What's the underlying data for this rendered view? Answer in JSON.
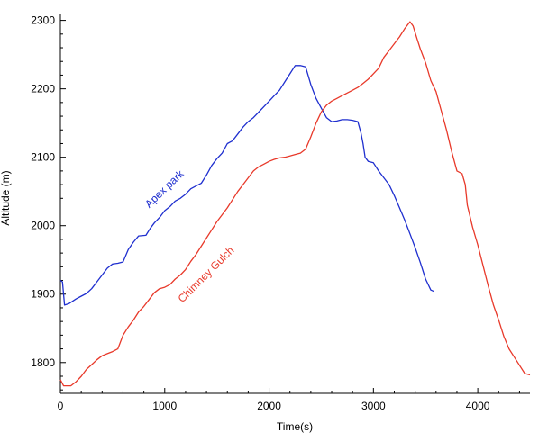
{
  "chart_data": {
    "type": "line",
    "title": "",
    "xlabel": "Time(s)",
    "ylabel": "Altitude (m)",
    "xlim": [
      0,
      4500
    ],
    "ylim": [
      1755,
      2310
    ],
    "xticks": [
      0,
      1000,
      2000,
      3000,
      4000
    ],
    "yticks": [
      1800,
      1900,
      2000,
      2100,
      2200,
      2300
    ],
    "grid": false,
    "legend": "none",
    "series": [
      {
        "name": "Apex park",
        "color": "#1f2fcf",
        "points": [
          [
            0,
            1920
          ],
          [
            20,
            1918
          ],
          [
            40,
            1884
          ],
          [
            80,
            1886
          ],
          [
            150,
            1893
          ],
          [
            200,
            1897
          ],
          [
            250,
            1901
          ],
          [
            300,
            1908
          ],
          [
            350,
            1918
          ],
          [
            400,
            1928
          ],
          [
            450,
            1938
          ],
          [
            500,
            1944
          ],
          [
            550,
            1945
          ],
          [
            600,
            1947
          ],
          [
            650,
            1965
          ],
          [
            700,
            1976
          ],
          [
            750,
            1985
          ],
          [
            820,
            1986
          ],
          [
            860,
            1996
          ],
          [
            900,
            2004
          ],
          [
            950,
            2012
          ],
          [
            1000,
            2022
          ],
          [
            1050,
            2028
          ],
          [
            1100,
            2036
          ],
          [
            1150,
            2040
          ],
          [
            1200,
            2046
          ],
          [
            1250,
            2054
          ],
          [
            1300,
            2058
          ],
          [
            1350,
            2062
          ],
          [
            1400,
            2074
          ],
          [
            1450,
            2088
          ],
          [
            1500,
            2098
          ],
          [
            1550,
            2106
          ],
          [
            1600,
            2120
          ],
          [
            1650,
            2124
          ],
          [
            1700,
            2134
          ],
          [
            1750,
            2144
          ],
          [
            1800,
            2152
          ],
          [
            1850,
            2158
          ],
          [
            1900,
            2166
          ],
          [
            1950,
            2174
          ],
          [
            2000,
            2182
          ],
          [
            2050,
            2190
          ],
          [
            2100,
            2198
          ],
          [
            2150,
            2210
          ],
          [
            2200,
            2222
          ],
          [
            2250,
            2234
          ],
          [
            2300,
            2234
          ],
          [
            2350,
            2232
          ],
          [
            2400,
            2206
          ],
          [
            2450,
            2186
          ],
          [
            2500,
            2172
          ],
          [
            2550,
            2158
          ],
          [
            2600,
            2152
          ],
          [
            2650,
            2153
          ],
          [
            2700,
            2155
          ],
          [
            2750,
            2155
          ],
          [
            2800,
            2154
          ],
          [
            2850,
            2152
          ],
          [
            2880,
            2136
          ],
          [
            2900,
            2120
          ],
          [
            2920,
            2100
          ],
          [
            2950,
            2094
          ],
          [
            3000,
            2092
          ],
          [
            3050,
            2080
          ],
          [
            3100,
            2070
          ],
          [
            3150,
            2060
          ],
          [
            3200,
            2044
          ],
          [
            3250,
            2026
          ],
          [
            3300,
            2008
          ],
          [
            3350,
            1988
          ],
          [
            3400,
            1968
          ],
          [
            3450,
            1946
          ],
          [
            3500,
            1922
          ],
          [
            3550,
            1906
          ],
          [
            3580,
            1904
          ]
        ]
      },
      {
        "name": "Chimney Gulch",
        "color": "#e8392a",
        "points": [
          [
            0,
            1775
          ],
          [
            30,
            1766
          ],
          [
            100,
            1766
          ],
          [
            150,
            1772
          ],
          [
            200,
            1780
          ],
          [
            250,
            1790
          ],
          [
            300,
            1797
          ],
          [
            350,
            1804
          ],
          [
            400,
            1810
          ],
          [
            450,
            1813
          ],
          [
            500,
            1816
          ],
          [
            550,
            1820
          ],
          [
            600,
            1840
          ],
          [
            650,
            1852
          ],
          [
            700,
            1862
          ],
          [
            750,
            1874
          ],
          [
            800,
            1882
          ],
          [
            850,
            1892
          ],
          [
            900,
            1902
          ],
          [
            950,
            1908
          ],
          [
            1000,
            1910
          ],
          [
            1050,
            1914
          ],
          [
            1100,
            1922
          ],
          [
            1150,
            1928
          ],
          [
            1200,
            1936
          ],
          [
            1250,
            1948
          ],
          [
            1300,
            1958
          ],
          [
            1350,
            1970
          ],
          [
            1400,
            1982
          ],
          [
            1450,
            1994
          ],
          [
            1500,
            2006
          ],
          [
            1550,
            2016
          ],
          [
            1600,
            2026
          ],
          [
            1650,
            2038
          ],
          [
            1700,
            2050
          ],
          [
            1750,
            2060
          ],
          [
            1800,
            2070
          ],
          [
            1850,
            2080
          ],
          [
            1900,
            2086
          ],
          [
            1950,
            2090
          ],
          [
            2000,
            2094
          ],
          [
            2050,
            2097
          ],
          [
            2100,
            2099
          ],
          [
            2150,
            2100
          ],
          [
            2200,
            2102
          ],
          [
            2250,
            2104
          ],
          [
            2300,
            2106
          ],
          [
            2350,
            2112
          ],
          [
            2400,
            2130
          ],
          [
            2450,
            2150
          ],
          [
            2500,
            2166
          ],
          [
            2550,
            2176
          ],
          [
            2600,
            2182
          ],
          [
            2650,
            2186
          ],
          [
            2700,
            2190
          ],
          [
            2750,
            2194
          ],
          [
            2800,
            2198
          ],
          [
            2850,
            2202
          ],
          [
            2900,
            2208
          ],
          [
            2950,
            2214
          ],
          [
            3000,
            2222
          ],
          [
            3050,
            2230
          ],
          [
            3100,
            2246
          ],
          [
            3150,
            2256
          ],
          [
            3200,
            2266
          ],
          [
            3250,
            2276
          ],
          [
            3300,
            2288
          ],
          [
            3350,
            2298
          ],
          [
            3380,
            2292
          ],
          [
            3420,
            2272
          ],
          [
            3450,
            2258
          ],
          [
            3500,
            2238
          ],
          [
            3550,
            2212
          ],
          [
            3600,
            2196
          ],
          [
            3650,
            2168
          ],
          [
            3700,
            2140
          ],
          [
            3750,
            2108
          ],
          [
            3800,
            2080
          ],
          [
            3850,
            2076
          ],
          [
            3880,
            2060
          ],
          [
            3900,
            2030
          ],
          [
            3950,
            1998
          ],
          [
            4000,
            1972
          ],
          [
            4050,
            1942
          ],
          [
            4100,
            1912
          ],
          [
            4150,
            1884
          ],
          [
            4200,
            1862
          ],
          [
            4250,
            1838
          ],
          [
            4300,
            1820
          ],
          [
            4350,
            1808
          ],
          [
            4400,
            1796
          ],
          [
            4450,
            1784
          ],
          [
            4500,
            1782
          ]
        ]
      }
    ],
    "annotations": [
      {
        "text": "Apex park",
        "series": 0,
        "at_x": 1020,
        "at_y": 2050,
        "angle": -44
      },
      {
        "text": "Chimney Gulch",
        "series": 1,
        "at_x": 1420,
        "at_y": 1925,
        "angle": -45
      }
    ]
  }
}
